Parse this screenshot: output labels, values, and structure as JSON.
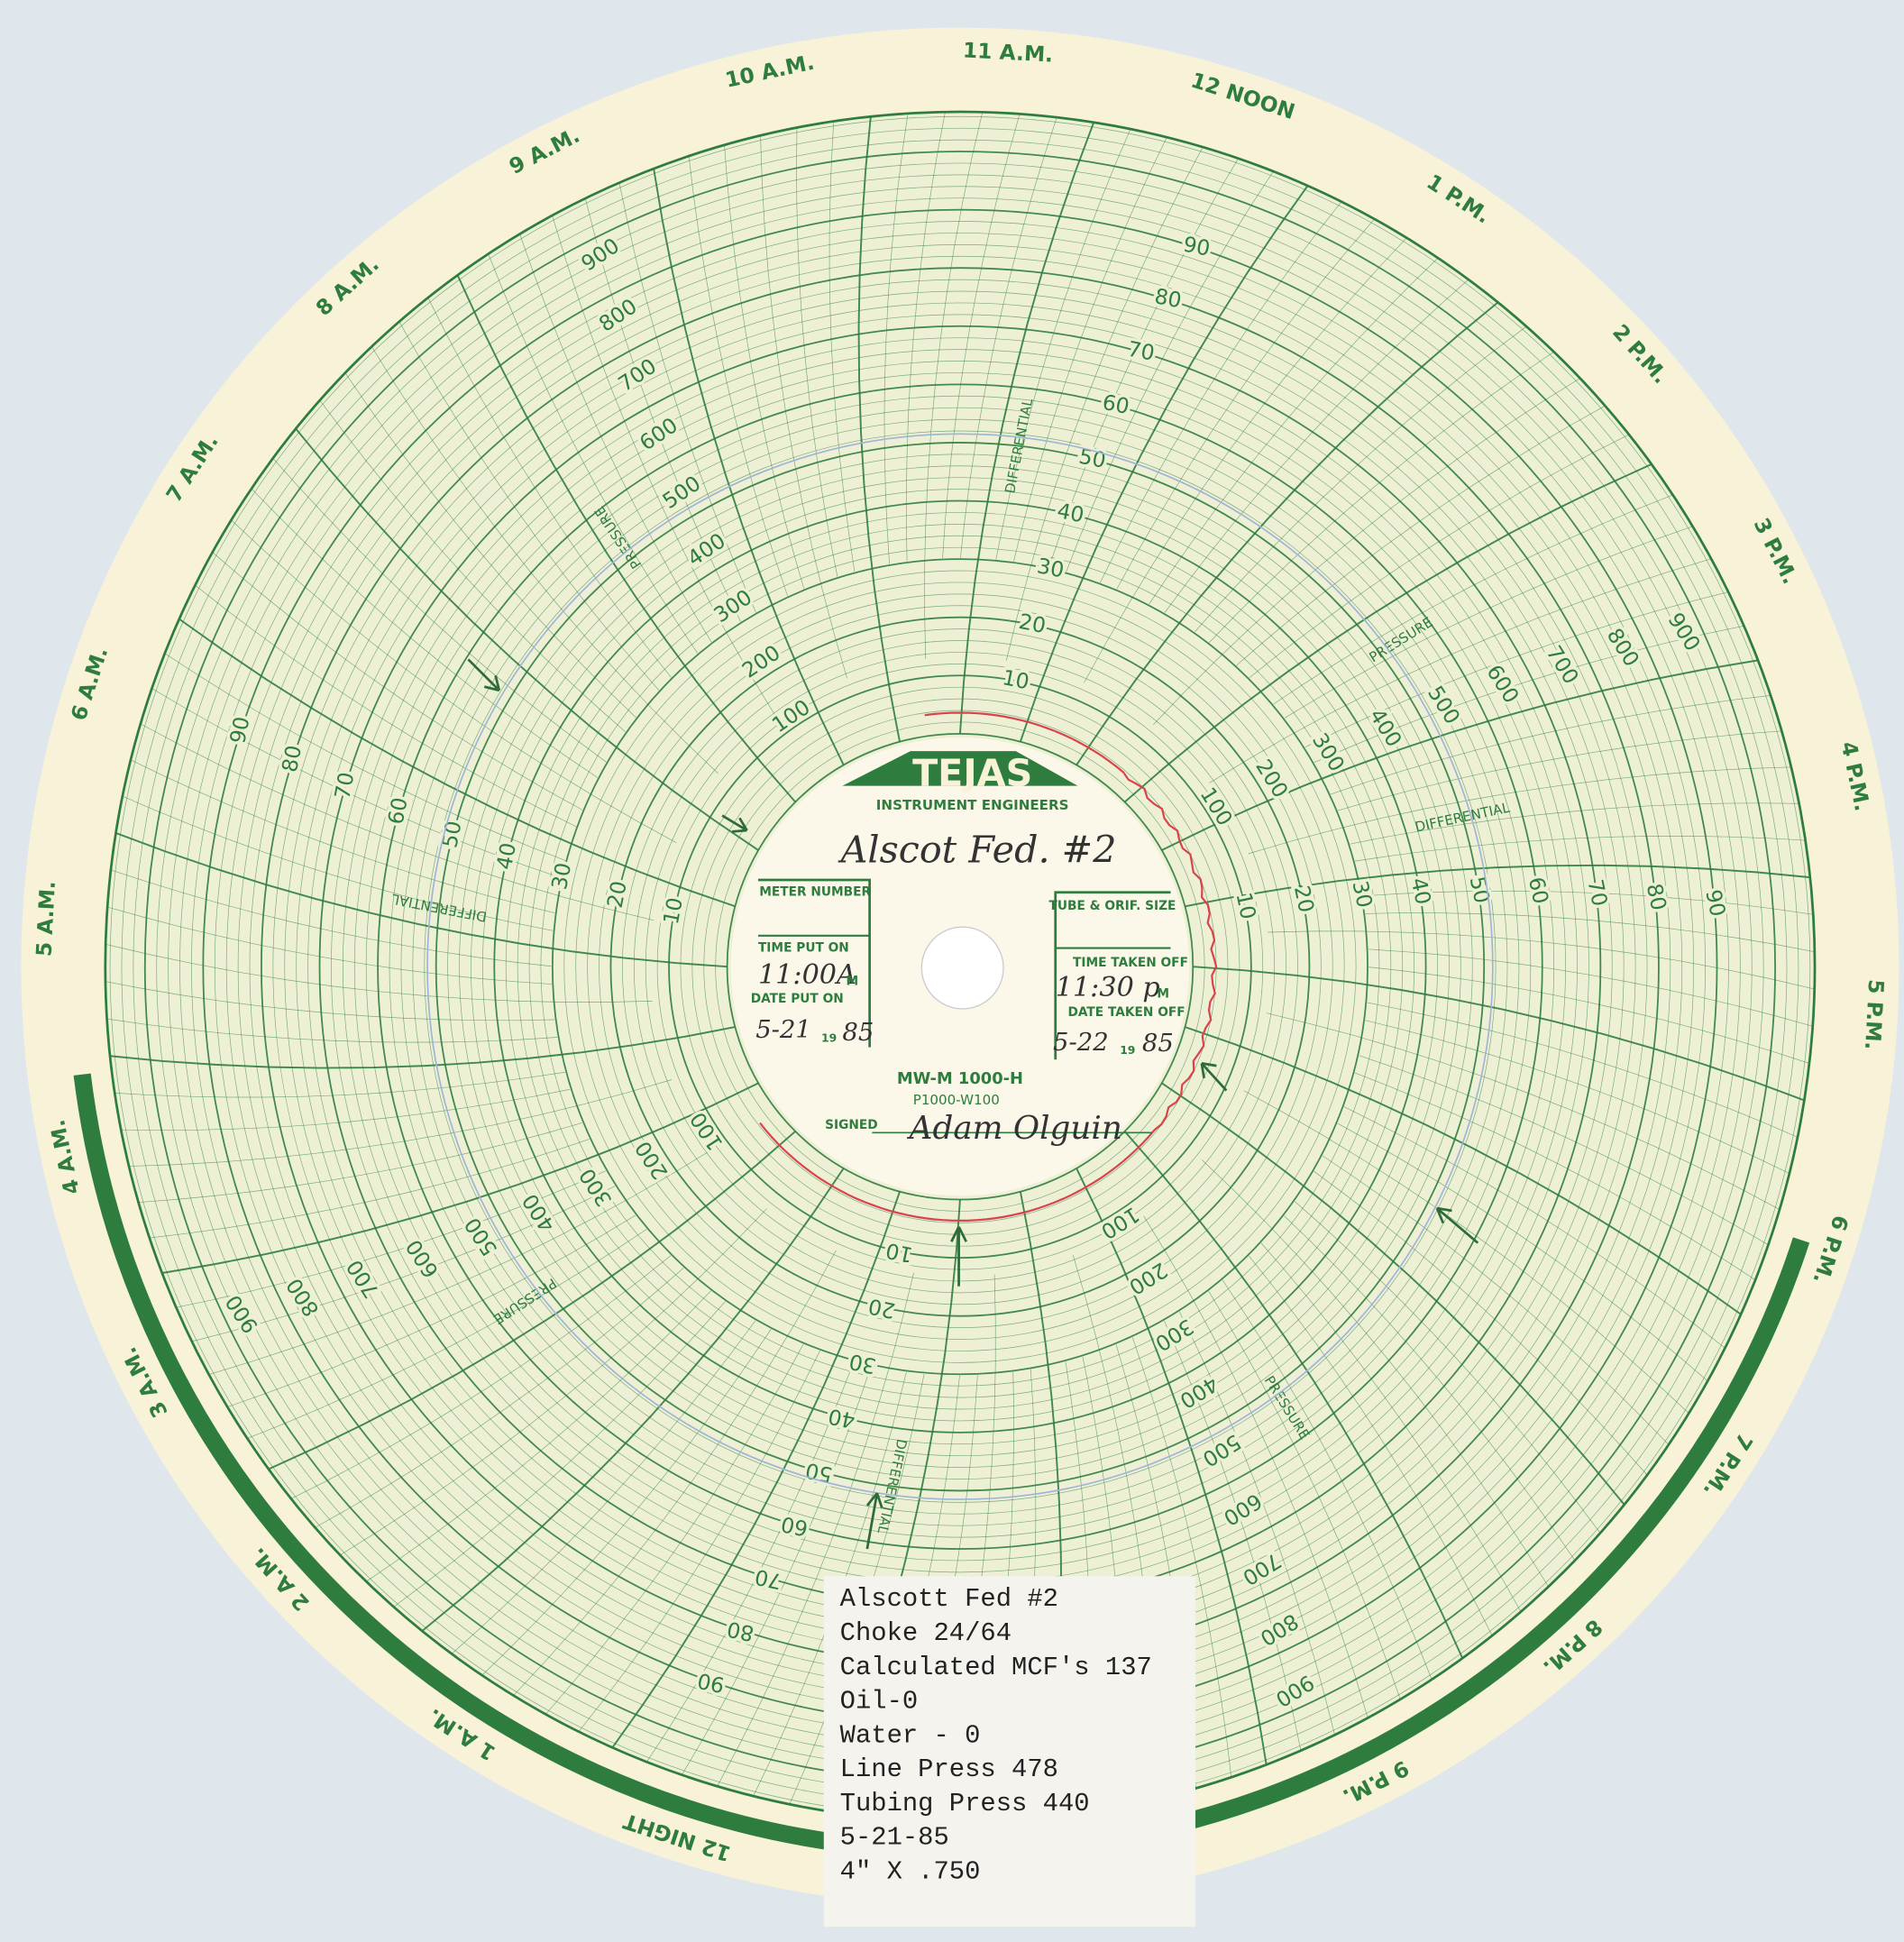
{
  "hour_labels": [
    "12 NOON",
    "1 P.M.",
    "2 P.M.",
    "3 P.M.",
    "4 P.M.",
    "5 P.M.",
    "6 P.M.",
    "7 P.M.",
    "8 P.M.",
    "9 P.M.",
    "12 NIGHT",
    "1 A.M.",
    "2 A.M.",
    "3 A.M.",
    "4 A.M.",
    "5 A.M.",
    "6 A.M.",
    "7 A.M.",
    "8 A.M.",
    "9 A.M.",
    "10 A.M.",
    "11 A.M."
  ],
  "differential_scale": {
    "label": "DIFFERENTIAL",
    "ticks": [
      "10",
      "20",
      "30",
      "40",
      "50",
      "60",
      "70",
      "80",
      "90"
    ]
  },
  "pressure_scale": {
    "label": "PRESSURE",
    "ticks": [
      "100",
      "200",
      "300",
      "400",
      "500",
      "600",
      "700",
      "800",
      "900"
    ]
  },
  "center_label": {
    "brand": "TEJAS",
    "brand_subtitle": "INSTRUMENT ENGINEERS",
    "well_name": "Alscot Fed. #2",
    "meter_number": "METER NUMBER",
    "time_put_on": "TIME PUT ON",
    "time_put_on_value": "11:00A",
    "time_put_on_suffix": "M",
    "date_put_on": "DATE PUT ON",
    "date_put_on_value": "5-21",
    "date_put_on_century": "19",
    "date_put_on_year": "85",
    "tube_orifice_size": "TUBE & ORIF. SIZE",
    "time_taken_off": "TIME TAKEN OFF",
    "time_taken_off_value": "11:30 p",
    "time_taken_off_suffix": "M",
    "date_taken_off": "DATE TAKEN OFF",
    "date_taken_off_value": "5-22",
    "date_taken_off_century": "19",
    "date_taken_off_year": "85",
    "model": "MW-M 1000-H",
    "range": "P1000-W100",
    "signed": "SIGNED",
    "signature": "Adam Olguin"
  },
  "note": {
    "lines": [
      "Alscott Fed #2",
      "Choke 24/64",
      "Calculated MCF's 137",
      "Oil-0",
      "Water - 0",
      "Line Press 478",
      "Tubing Press 440",
      "5-21-85",
      "4\" X .750"
    ]
  }
}
